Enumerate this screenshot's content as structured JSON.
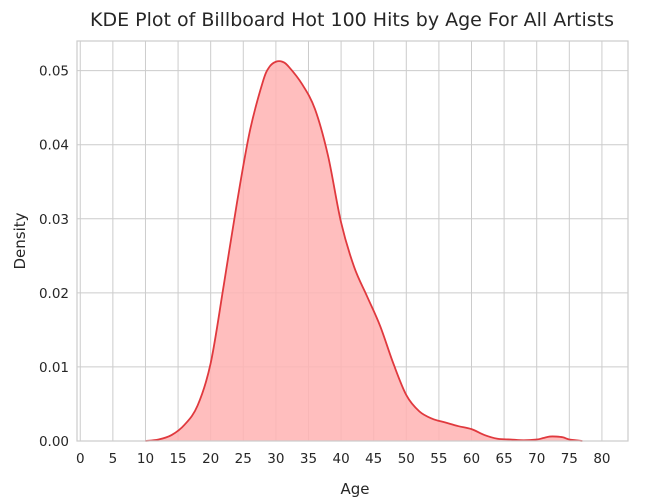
{
  "chart_data": {
    "type": "area",
    "title": "KDE Plot of Billboard Hot 100 Hits by Age For All Artists",
    "xlabel": "Age",
    "ylabel": "Density",
    "xlim": [
      -0.5,
      84
    ],
    "ylim": [
      0,
      0.054
    ],
    "x_ticks": [
      0,
      5,
      10,
      15,
      20,
      25,
      30,
      35,
      40,
      45,
      50,
      55,
      60,
      65,
      70,
      75,
      80
    ],
    "y_ticks": [
      0.0,
      0.01,
      0.02,
      0.03,
      0.04,
      0.05
    ],
    "y_tick_labels": [
      "0.00",
      "0.01",
      "0.02",
      "0.03",
      "0.04",
      "0.05"
    ],
    "grid": true,
    "line_color": "#e0393e",
    "fill_color": "#ffb3b3",
    "series": [
      {
        "x": [
          10,
          12,
          14,
          16,
          18,
          20,
          22,
          24,
          26,
          28,
          29,
          30,
          31,
          32,
          34,
          36,
          38,
          40,
          42,
          44,
          46,
          48,
          50,
          52,
          54,
          56,
          58,
          60,
          62,
          64,
          66,
          68,
          70,
          71,
          72,
          73,
          74,
          75,
          76,
          77
        ],
        "y": [
          0.0,
          0.0002,
          0.0008,
          0.0022,
          0.0048,
          0.0105,
          0.021,
          0.032,
          0.0418,
          0.0485,
          0.0505,
          0.0512,
          0.0512,
          0.0505,
          0.0482,
          0.0448,
          0.0385,
          0.0295,
          0.0235,
          0.0195,
          0.0155,
          0.0105,
          0.0062,
          0.004,
          0.003,
          0.0025,
          0.002,
          0.0016,
          0.0008,
          0.0003,
          0.0002,
          0.0001,
          0.0002,
          0.0004,
          0.0006,
          0.0006,
          0.0005,
          0.0002,
          0.0001,
          0.0
        ]
      }
    ]
  }
}
